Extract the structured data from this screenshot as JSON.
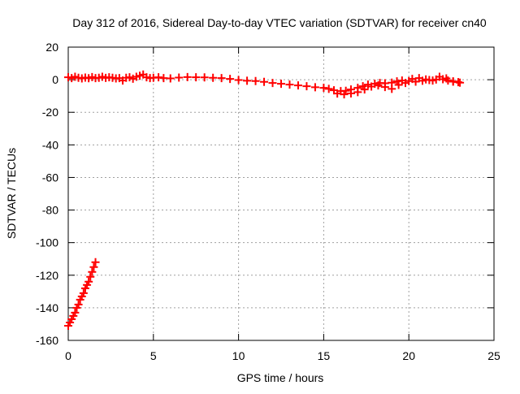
{
  "chart_data": {
    "type": "scatter",
    "title": "Day 312 of 2016, Sidereal Day-to-day VTEC variation (SDTVAR) for receiver cn40",
    "xlabel": "GPS time / hours",
    "ylabel": "SDTVAR / TECUs",
    "xlim": [
      0,
      25
    ],
    "ylim": [
      -160,
      20
    ],
    "xticks": [
      0,
      5,
      10,
      15,
      20,
      25
    ],
    "yticks": [
      -160,
      -140,
      -120,
      -100,
      -80,
      -60,
      -40,
      -20,
      0,
      20
    ],
    "xtick_labels": [
      "0",
      "5",
      "10",
      "15",
      "20",
      "25"
    ],
    "ytick_labels": [
      "-160",
      "-140",
      "-120",
      "-100",
      "-80",
      "-60",
      "-40",
      "-20",
      "0",
      "20"
    ],
    "grid": true,
    "series_color": "#ff0000",
    "series": [
      {
        "name": "main-trace",
        "x": [
          0.0,
          0.2,
          0.4,
          0.6,
          0.8,
          1.0,
          1.2,
          1.4,
          1.6,
          1.8,
          2.0,
          2.2,
          2.4,
          2.6,
          2.8,
          3.0,
          3.2,
          3.4,
          3.6,
          3.8,
          4.0,
          4.2,
          4.4,
          4.6,
          4.8,
          5.0,
          5.3,
          5.6,
          6.0,
          6.5,
          7.0,
          7.5,
          8.0,
          8.5,
          9.0,
          9.5,
          10.0,
          10.5,
          11.0,
          11.5,
          12.0,
          12.5,
          13.0,
          13.5,
          14.0,
          14.5,
          15.0,
          15.3,
          15.6,
          16.0,
          16.3,
          16.6,
          17.0,
          17.3,
          17.6,
          18.0,
          18.3,
          18.6,
          19.0,
          19.3,
          19.6,
          20.0,
          20.4,
          20.8,
          21.2,
          21.6,
          22.0,
          22.3,
          22.6,
          22.9
        ],
        "y": [
          1.5,
          1.0,
          1.8,
          1.2,
          0.8,
          1.3,
          0.9,
          1.6,
          1.0,
          1.2,
          1.8,
          1.1,
          1.5,
          1.2,
          0.8,
          1.0,
          -0.5,
          1.2,
          1.5,
          0.6,
          1.8,
          2.4,
          3.2,
          1.5,
          1.0,
          1.2,
          1.5,
          1.0,
          0.8,
          1.3,
          1.6,
          1.5,
          1.4,
          1.2,
          1.0,
          0.5,
          -0.2,
          -0.6,
          -0.8,
          -1.3,
          -2.0,
          -2.5,
          -3.0,
          -3.5,
          -4.0,
          -4.6,
          -5.0,
          -5.6,
          -6.5,
          -7.0,
          -6.8,
          -6.0,
          -5.0,
          -4.0,
          -3.0,
          -2.5,
          -2.0,
          -2.2,
          -1.8,
          -1.0,
          -0.5,
          -0.8,
          -1.2,
          -0.6,
          -0.2,
          0.1,
          0.3,
          -0.5,
          -1.0,
          -1.5
        ]
      },
      {
        "name": "spread-trace",
        "x": [
          15.8,
          16.2,
          16.6,
          17.0,
          17.4,
          17.8,
          18.2,
          18.6,
          19.0,
          19.4,
          19.8,
          20.2,
          20.6,
          21.0,
          21.4,
          21.8,
          22.2,
          22.6,
          23.0
        ],
        "y": [
          -8.5,
          -9.0,
          -8.4,
          -7.6,
          -6.0,
          -4.2,
          -3.5,
          -4.5,
          -5.6,
          -3.2,
          -2.0,
          0.5,
          1.0,
          0.2,
          -0.5,
          1.8,
          0.8,
          -1.2,
          -1.8
        ]
      },
      {
        "name": "start-branch",
        "x": [
          0.0,
          0.1,
          0.2,
          0.3,
          0.4,
          0.5,
          0.6,
          0.7,
          0.8,
          0.9,
          1.0,
          1.1,
          1.2,
          1.3,
          1.4,
          1.5,
          1.6
        ],
        "y": [
          -151.0,
          -149.0,
          -147.0,
          -145.0,
          -143.0,
          -140.0,
          -138.0,
          -135.0,
          -133.0,
          -131.0,
          -128.0,
          -126.0,
          -124.0,
          -121.0,
          -118.0,
          -115.0,
          -112.0
        ]
      }
    ]
  }
}
